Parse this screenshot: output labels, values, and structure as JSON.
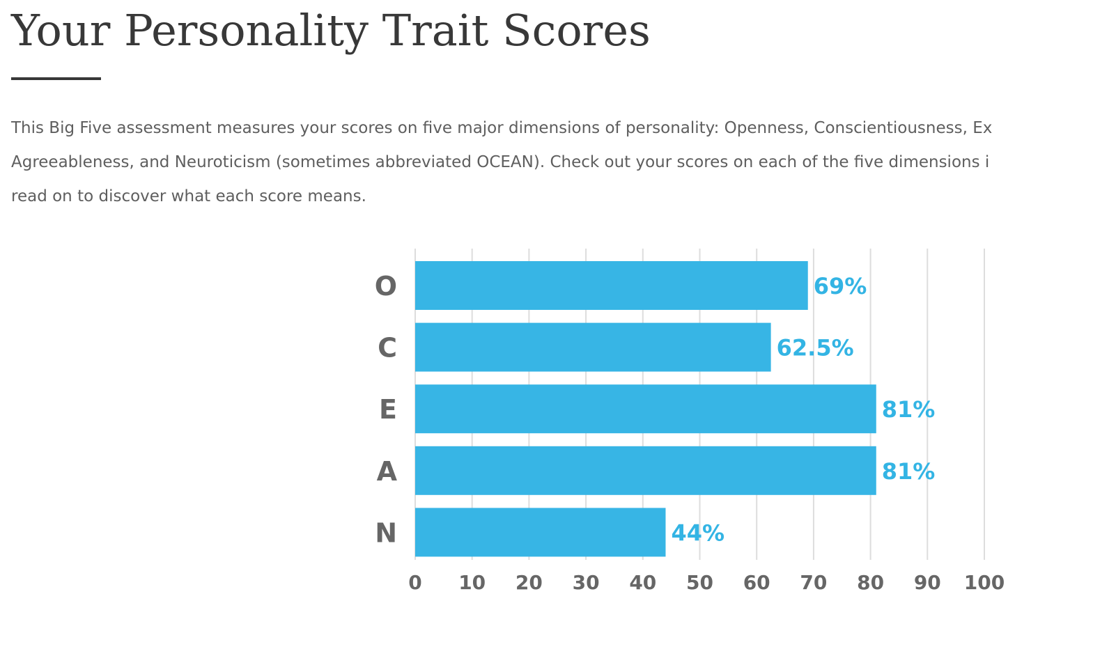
{
  "page": {
    "title": "Your Personality Trait Scores",
    "intro_lines": [
      "This Big Five assessment measures your scores on five major dimensions of personality: Openness, Conscientiousness, Ex",
      "Agreeableness, and Neuroticism (sometimes abbreviated OCEAN). Check out your scores on each of the five dimensions i",
      "read on to discover what each score means."
    ]
  },
  "colors": {
    "bar": "#33b4e4",
    "data_label": "#33b4e4",
    "grid": "#dddddd",
    "text": "#666666"
  },
  "chart_data": {
    "type": "bar",
    "orientation": "horizontal",
    "categories": [
      "O",
      "C",
      "E",
      "A",
      "N"
    ],
    "values": [
      69,
      62.5,
      81,
      81,
      44
    ],
    "data_labels": [
      "69%",
      "62.5%",
      "81%",
      "81%",
      "44%"
    ],
    "x_ticks": [
      "0",
      "10",
      "20",
      "30",
      "40",
      "50",
      "60",
      "70",
      "80",
      "90",
      "100"
    ],
    "xlim": [
      0,
      100
    ],
    "grid": true,
    "legend": false,
    "title": "",
    "xlabel": "",
    "ylabel": ""
  }
}
